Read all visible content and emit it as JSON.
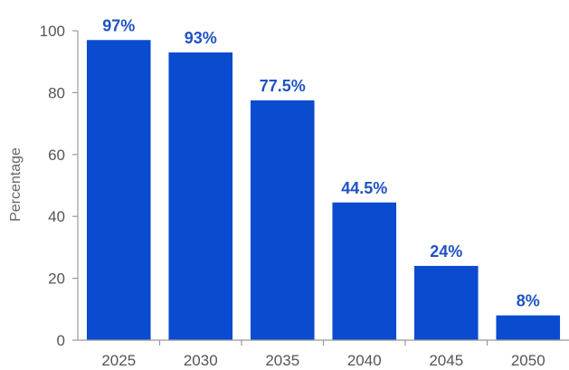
{
  "chart_data": {
    "type": "bar",
    "categories": [
      "2025",
      "2030",
      "2035",
      "2040",
      "2045",
      "2050"
    ],
    "values": [
      97,
      93,
      77.5,
      44.5,
      24,
      8
    ],
    "data_labels": [
      "97%",
      "93%",
      "77.5%",
      "44.5%",
      "24%",
      "8%"
    ],
    "title": "",
    "xlabel": "",
    "ylabel": "Percentage",
    "ylim": [
      0,
      100
    ],
    "yticks": [
      0,
      20,
      40,
      60,
      80,
      100
    ],
    "grid": false,
    "legend": "none",
    "colors": {
      "bar": "#0a4bcf",
      "label": "#1f52c4",
      "axis": "#999999"
    }
  }
}
